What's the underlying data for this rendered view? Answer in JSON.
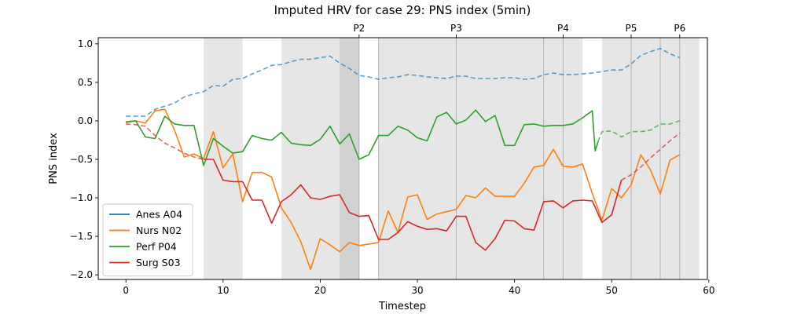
{
  "chart_data": {
    "type": "line",
    "title": "Imputed HRV for case 29: PNS index (5min)",
    "xlabel": "Timestep",
    "ylabel": "PNS index",
    "xlim": [
      -2.85,
      59.85
    ],
    "ylim": [
      -2.06,
      1.08
    ],
    "x_ticks": [
      0,
      10,
      20,
      30,
      40,
      50,
      60
    ],
    "y_ticks": [
      -2.0,
      -1.5,
      -1.0,
      -0.5,
      0.0,
      0.5,
      1.0
    ],
    "y_tick_labels": [
      "−2.0",
      "−1.5",
      "−1.0",
      "−0.5",
      "0.0",
      "0.5",
      "1.0"
    ],
    "grid": false,
    "legend_position": "lower-left",
    "shaded_regions": [
      [
        8,
        12
      ],
      [
        16,
        24
      ],
      [
        22,
        24
      ],
      [
        26,
        47
      ],
      [
        49,
        59
      ]
    ],
    "phase_markers": [
      {
        "label": "P2",
        "x": 24
      },
      {
        "label": "P3",
        "x": 34
      },
      {
        "label": "P4",
        "x": 45
      },
      {
        "label": "P5",
        "x": 52
      },
      {
        "label": "P6",
        "x": 57
      }
    ],
    "phase_lines": [
      26,
      43,
      55
    ],
    "series": [
      {
        "name": "Anes A04",
        "color": "#1f77b4",
        "observed": [],
        "imputed": [
          [
            0,
            0.06
          ],
          [
            1,
            0.06
          ],
          [
            2,
            0.06
          ],
          [
            3,
            0.15
          ],
          [
            4,
            0.19
          ],
          [
            5,
            0.23
          ],
          [
            6,
            0.31
          ],
          [
            7,
            0.35
          ],
          [
            8,
            0.38
          ],
          [
            9,
            0.46
          ],
          [
            10,
            0.45
          ],
          [
            11,
            0.54
          ],
          [
            12,
            0.55
          ],
          [
            13,
            0.61
          ],
          [
            14,
            0.66
          ],
          [
            15,
            0.72
          ],
          [
            16,
            0.73
          ],
          [
            17,
            0.77
          ],
          [
            18,
            0.8
          ],
          [
            19,
            0.8
          ],
          [
            20,
            0.82
          ],
          [
            21,
            0.84
          ],
          [
            22,
            0.75
          ],
          [
            23,
            0.68
          ],
          [
            24,
            0.59
          ],
          [
            25,
            0.57
          ],
          [
            26,
            0.54
          ],
          [
            27,
            0.56
          ],
          [
            28,
            0.57
          ],
          [
            29,
            0.6
          ],
          [
            30,
            0.59
          ],
          [
            31,
            0.57
          ],
          [
            32,
            0.56
          ],
          [
            33,
            0.55
          ],
          [
            34,
            0.58
          ],
          [
            35,
            0.58
          ],
          [
            36,
            0.55
          ],
          [
            37,
            0.55
          ],
          [
            38,
            0.55
          ],
          [
            39,
            0.56
          ],
          [
            40,
            0.56
          ],
          [
            41,
            0.54
          ],
          [
            42,
            0.55
          ],
          [
            43,
            0.6
          ],
          [
            44,
            0.62
          ],
          [
            45,
            0.6
          ],
          [
            46,
            0.6
          ],
          [
            47,
            0.61
          ],
          [
            48,
            0.62
          ],
          [
            49,
            0.64
          ],
          [
            50,
            0.66
          ],
          [
            51,
            0.66
          ],
          [
            52,
            0.74
          ],
          [
            53,
            0.85
          ],
          [
            54,
            0.9
          ],
          [
            55,
            0.94
          ],
          [
            56,
            0.87
          ],
          [
            57,
            0.82
          ]
        ]
      },
      {
        "name": "Nurs N02",
        "color": "#ff7f0e",
        "observed": [
          [
            0,
            -0.01
          ],
          [
            1,
            0.0
          ],
          [
            2,
            -0.03
          ],
          [
            3,
            0.13
          ],
          [
            4,
            0.15
          ],
          [
            5,
            -0.12
          ],
          [
            6,
            -0.47
          ],
          [
            7,
            -0.43
          ],
          [
            8,
            -0.49
          ],
          [
            9,
            -0.14
          ],
          [
            10,
            -0.61
          ],
          [
            11,
            -0.43
          ],
          [
            12,
            -1.05
          ],
          [
            13,
            -0.67
          ],
          [
            14,
            -0.67
          ],
          [
            15,
            -0.73
          ],
          [
            16,
            -1.13
          ],
          [
            17,
            -1.32
          ],
          [
            18,
            -1.57
          ],
          [
            19,
            -1.93
          ],
          [
            20,
            -1.53
          ],
          [
            21,
            -1.61
          ],
          [
            22,
            -1.7
          ],
          [
            23,
            -1.58
          ],
          [
            24,
            -1.62
          ],
          [
            25,
            -1.6
          ],
          [
            26,
            -1.58
          ],
          [
            27,
            -1.17
          ],
          [
            28,
            -1.45
          ],
          [
            29,
            -0.99
          ],
          [
            30,
            -0.96
          ],
          [
            31,
            -1.28
          ],
          [
            32,
            -1.21
          ],
          [
            33,
            -1.18
          ],
          [
            34,
            -1.15
          ],
          [
            35,
            -0.97
          ],
          [
            36,
            -1.0
          ],
          [
            37,
            -0.87
          ],
          [
            38,
            -0.98
          ],
          [
            39,
            -0.98
          ],
          [
            40,
            -0.98
          ],
          [
            41,
            -0.81
          ],
          [
            42,
            -0.6
          ],
          [
            43,
            -0.58
          ],
          [
            44,
            -0.37
          ],
          [
            45,
            -0.59
          ],
          [
            46,
            -0.6
          ],
          [
            47,
            -0.56
          ],
          [
            48,
            -0.94
          ],
          [
            49,
            -1.29
          ],
          [
            50,
            -0.88
          ],
          [
            51,
            -1.0
          ],
          [
            52,
            -0.83
          ],
          [
            53,
            -0.44
          ],
          [
            54,
            -0.64
          ],
          [
            55,
            -0.95
          ],
          [
            56,
            -0.51
          ],
          [
            57,
            -0.44
          ]
        ],
        "imputed": []
      },
      {
        "name": "Perf P04",
        "color": "#2ca02c",
        "observed": [
          [
            0,
            -0.02
          ],
          [
            1,
            0.0
          ],
          [
            2,
            -0.21
          ],
          [
            3,
            -0.23
          ],
          [
            4,
            0.06
          ],
          [
            5,
            -0.04
          ],
          [
            6,
            -0.06
          ],
          [
            7,
            -0.06
          ],
          [
            8,
            -0.58
          ],
          [
            9,
            -0.23
          ],
          [
            10,
            -0.33
          ],
          [
            11,
            -0.42
          ],
          [
            12,
            -0.4
          ],
          [
            13,
            -0.19
          ],
          [
            14,
            -0.23
          ],
          [
            15,
            -0.25
          ],
          [
            16,
            -0.15
          ],
          [
            17,
            -0.29
          ],
          [
            18,
            -0.31
          ],
          [
            19,
            -0.32
          ],
          [
            20,
            -0.24
          ],
          [
            21,
            -0.07
          ],
          [
            22,
            -0.3
          ],
          [
            23,
            -0.17
          ],
          [
            24,
            -0.5
          ],
          [
            25,
            -0.44
          ],
          [
            26,
            -0.19
          ],
          [
            27,
            -0.19
          ],
          [
            28,
            -0.07
          ],
          [
            29,
            -0.12
          ],
          [
            30,
            -0.22
          ],
          [
            31,
            -0.26
          ],
          [
            32,
            0.05
          ],
          [
            33,
            0.11
          ],
          [
            34,
            -0.04
          ],
          [
            35,
            0.01
          ],
          [
            36,
            0.14
          ],
          [
            37,
            -0.01
          ],
          [
            38,
            0.07
          ],
          [
            39,
            -0.32
          ],
          [
            40,
            -0.32
          ],
          [
            41,
            -0.05
          ],
          [
            42,
            -0.04
          ],
          [
            43,
            -0.07
          ],
          [
            44,
            -0.06
          ],
          [
            45,
            -0.06
          ],
          [
            46,
            -0.04
          ],
          [
            47,
            0.04
          ],
          [
            48,
            0.13
          ],
          [
            48.3,
            -0.39
          ],
          [
            48.6,
            -0.27
          ]
        ],
        "imputed": [
          [
            48.6,
            -0.27
          ],
          [
            49,
            -0.14
          ],
          [
            50,
            -0.13
          ],
          [
            51,
            -0.21
          ],
          [
            52,
            -0.14
          ],
          [
            53,
            -0.14
          ],
          [
            54,
            -0.12
          ],
          [
            55,
            -0.04
          ],
          [
            56,
            -0.04
          ],
          [
            57,
            0.0
          ]
        ]
      },
      {
        "name": "Surg S03",
        "color": "#d62728",
        "observed": [
          [
            8,
            -0.5
          ],
          [
            9,
            -0.5
          ],
          [
            10,
            -0.77
          ],
          [
            11,
            -0.79
          ],
          [
            12,
            -0.79
          ],
          [
            13,
            -1.03
          ],
          [
            14,
            -1.03
          ],
          [
            15,
            -1.33
          ],
          [
            16,
            -1.05
          ],
          [
            17,
            -0.96
          ],
          [
            18,
            -0.83
          ],
          [
            19,
            -1.0
          ],
          [
            20,
            -1.02
          ],
          [
            21,
            -0.98
          ],
          [
            22,
            -0.96
          ],
          [
            23,
            -1.19
          ],
          [
            24,
            -1.24
          ],
          [
            25,
            -1.23
          ],
          [
            26,
            -1.54
          ],
          [
            27,
            -1.54
          ],
          [
            28,
            -1.45
          ],
          [
            29,
            -1.31
          ],
          [
            30,
            -1.37
          ],
          [
            31,
            -1.41
          ],
          [
            32,
            -1.4
          ],
          [
            33,
            -1.43
          ],
          [
            34,
            -1.24
          ],
          [
            35,
            -1.24
          ],
          [
            36,
            -1.58
          ],
          [
            37,
            -1.68
          ],
          [
            38,
            -1.53
          ],
          [
            39,
            -1.29
          ],
          [
            40,
            -1.3
          ],
          [
            41,
            -1.4
          ],
          [
            42,
            -1.42
          ],
          [
            43,
            -1.05
          ],
          [
            44,
            -1.04
          ],
          [
            45,
            -1.13
          ],
          [
            46,
            -1.04
          ],
          [
            47,
            -1.03
          ],
          [
            48,
            -1.04
          ],
          [
            49,
            -1.32
          ],
          [
            50,
            -1.22
          ],
          [
            51,
            -0.77
          ]
        ],
        "imputed": [
          [
            0,
            -0.04
          ],
          [
            1,
            -0.05
          ],
          [
            2,
            -0.07
          ],
          [
            3,
            -0.19
          ],
          [
            4,
            -0.29
          ],
          [
            5,
            -0.35
          ],
          [
            6,
            -0.42
          ],
          [
            7,
            -0.47
          ],
          [
            8,
            -0.5
          ],
          [
            51,
            -0.77
          ],
          [
            52,
            -0.7
          ],
          [
            53,
            -0.6
          ],
          [
            54,
            -0.48
          ],
          [
            55,
            -0.37
          ],
          [
            56,
            -0.26
          ],
          [
            57,
            -0.16
          ]
        ]
      }
    ]
  }
}
